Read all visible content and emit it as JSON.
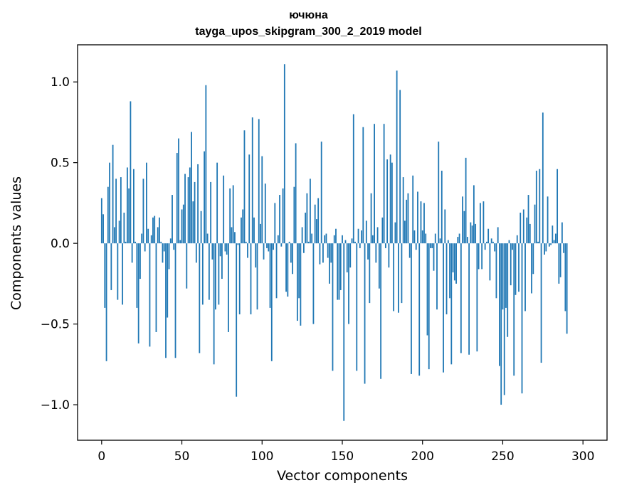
{
  "chart_data": {
    "type": "bar",
    "title": "ючюна",
    "subtitle": "tayga_upos_skipgram_300_2_2019 model",
    "xlabel": "Vector components",
    "ylabel": "Components values",
    "xlim": [
      -15,
      315
    ],
    "ylim": [
      -1.22,
      1.23
    ],
    "xticks": [
      0,
      50,
      100,
      150,
      200,
      250,
      300
    ],
    "xtick_labels": [
      "0",
      "50",
      "100",
      "150",
      "200",
      "250",
      "300"
    ],
    "yticks": [
      -1.0,
      -0.5,
      0.0,
      0.5,
      1.0
    ],
    "ytick_labels": [
      "−1.0",
      "−0.5",
      "0.0",
      "0.5",
      "1.0"
    ],
    "grid": false,
    "bar_color": "#1f77b4",
    "values": [
      0.28,
      0.18,
      -0.4,
      -0.73,
      0.35,
      0.5,
      -0.29,
      0.61,
      0.1,
      0.4,
      -0.35,
      0.14,
      0.41,
      -0.38,
      0.19,
      0.01,
      0.47,
      0.34,
      0.88,
      -0.12,
      0.46,
      0.01,
      -0.4,
      -0.62,
      -0.22,
      0.06,
      0.4,
      -0.05,
      0.5,
      0.09,
      -0.64,
      0.05,
      0.16,
      0.17,
      -0.55,
      0.1,
      0.16,
      0.01,
      -0.12,
      -0.05,
      -0.71,
      -0.46,
      -0.16,
      0.03,
      0.3,
      -0.04,
      -0.71,
      0.56,
      0.65,
      0.02,
      0.21,
      0.24,
      0.43,
      -0.28,
      0.41,
      0.47,
      0.69,
      0.26,
      0.38,
      -0.12,
      0.49,
      -0.68,
      0.2,
      -0.38,
      0.57,
      0.98,
      0.06,
      -0.35,
      0.38,
      -0.1,
      -0.75,
      -0.41,
      0.5,
      -0.38,
      -0.08,
      -0.22,
      0.42,
      -0.05,
      -0.07,
      -0.55,
      0.34,
      0.1,
      0.36,
      0.07,
      -0.95,
      -0.01,
      -0.44,
      0.16,
      0.21,
      0.7,
      0.01,
      -0.09,
      0.55,
      -0.44,
      0.78,
      0.16,
      -0.15,
      -0.41,
      0.77,
      0.12,
      0.54,
      -0.1,
      0.37,
      -0.03,
      -0.05,
      -0.4,
      -0.73,
      -0.04,
      0.25,
      -0.34,
      0.05,
      0.3,
      -0.02,
      0.34,
      1.11,
      -0.3,
      -0.33,
      0.01,
      -0.12,
      -0.19,
      0.35,
      0.62,
      -0.48,
      -0.34,
      -0.51,
      0.1,
      -0.06,
      0.19,
      0.31,
      0.01,
      0.4,
      0.06,
      -0.5,
      0.24,
      0.15,
      0.28,
      -0.13,
      0.63,
      -0.12,
      0.05,
      0.06,
      -0.09,
      -0.25,
      -0.12,
      -0.79,
      0.05,
      0.09,
      -0.35,
      -0.35,
      -0.29,
      0.05,
      -1.1,
      0.02,
      -0.18,
      -0.5,
      -0.15,
      0.03,
      0.8,
      0.01,
      -0.79,
      0.09,
      -0.03,
      0.08,
      0.72,
      -0.87,
      0.14,
      -0.1,
      -0.37,
      0.31,
      0.05,
      0.74,
      -0.12,
      0.1,
      -0.28,
      -0.84,
      0.16,
      0.74,
      -0.03,
      0.52,
      -0.15,
      0.55,
      0.5,
      -0.42,
      0.13,
      1.07,
      -0.43,
      0.95,
      -0.37,
      0.41,
      0.14,
      0.27,
      0.31,
      -0.09,
      -0.81,
      0.42,
      0.08,
      -0.04,
      0.32,
      -0.82,
      0.26,
      0.08,
      0.25,
      0.06,
      -0.57,
      -0.78,
      -0.03,
      -0.03,
      -0.17,
      0.06,
      -0.41,
      0.63,
      0.03,
      0.45,
      -0.8,
      0.21,
      -0.44,
      0.02,
      -0.34,
      -0.75,
      -0.18,
      -0.23,
      -0.25,
      0.04,
      0.06,
      -0.68,
      0.29,
      0.2,
      0.53,
      0.04,
      -0.69,
      0.13,
      0.11,
      0.36,
      0.12,
      -0.67,
      -0.16,
      0.25,
      -0.16,
      0.26,
      -0.04,
      0.01,
      0.09,
      -0.23,
      0.03,
      0.01,
      -0.05,
      -0.34,
      0.1,
      -0.76,
      -1.0,
      -0.41,
      -0.94,
      -0.4,
      -0.58,
      0.02,
      -0.26,
      -0.04,
      -0.82,
      -0.32,
      0.05,
      -0.3,
      0.19,
      -0.93,
      0.21,
      -0.42,
      0.16,
      0.3,
      0.12,
      -0.31,
      -0.19,
      0.24,
      0.45,
      0.01,
      0.46,
      -0.74,
      0.81,
      -0.07,
      -0.05,
      0.29,
      -0.02,
      -0.01,
      0.11,
      0.02,
      0.06,
      0.46,
      -0.25,
      -0.21,
      0.13,
      -0.06,
      -0.42,
      -0.56
    ]
  }
}
